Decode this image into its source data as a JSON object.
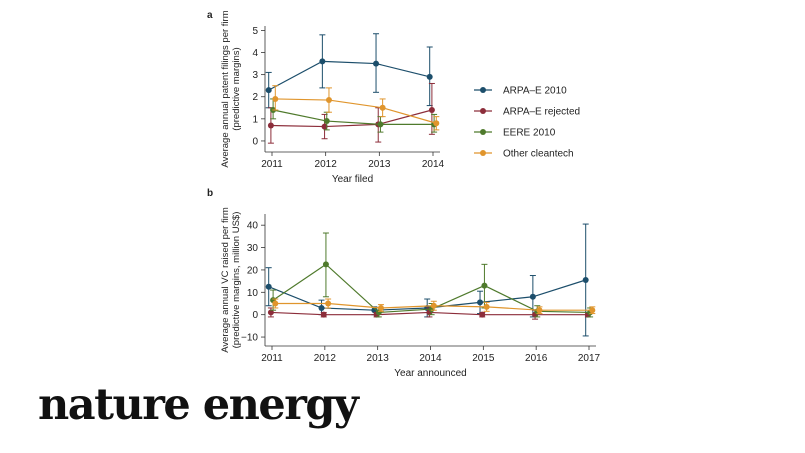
{
  "logo": "nature energy",
  "colors": {
    "ARPA-E 2010": "#1c4e6b",
    "ARPA-E rejected": "#8c2d3a",
    "EERE 2010": "#4f7a2c",
    "Other cleantech": "#e0952c"
  },
  "chart_data": [
    {
      "panel_label": "a",
      "type": "line",
      "title": "",
      "xlabel": "Year filed",
      "ylabel": "Average annual patent filings per firm (predictive margins)",
      "categories": [
        "2011",
        "2012",
        "2013",
        "2014"
      ],
      "ylim": [
        -0.5,
        5.2
      ],
      "yticks": [
        0,
        1,
        2,
        3,
        4,
        5
      ],
      "legend_position": "right",
      "series": [
        {
          "name": "ARPA–E 2010",
          "color_key": "ARPA-E 2010",
          "values": [
            2.3,
            3.6,
            3.5,
            2.9
          ],
          "ci_low": [
            1.5,
            2.4,
            2.2,
            1.6
          ],
          "ci_high": [
            3.1,
            4.8,
            4.85,
            4.25
          ]
        },
        {
          "name": "ARPA–E rejected",
          "color_key": "ARPA-E rejected",
          "values": [
            0.7,
            0.65,
            0.75,
            1.4
          ],
          "ci_low": [
            -0.1,
            0.1,
            -0.05,
            0.3
          ],
          "ci_high": [
            1.5,
            1.2,
            1.5,
            2.6
          ]
        },
        {
          "name": "EERE 2010",
          "color_key": "EERE 2010",
          "values": [
            1.4,
            0.9,
            0.75,
            0.75
          ],
          "ci_low": [
            1.0,
            0.5,
            0.4,
            0.4
          ],
          "ci_high": [
            1.9,
            1.3,
            1.1,
            1.2
          ]
        },
        {
          "name": "Other cleantech",
          "color_key": "Other cleantech",
          "values": [
            1.9,
            1.85,
            1.5,
            0.8
          ],
          "ci_low": [
            1.4,
            1.3,
            1.1,
            0.5
          ],
          "ci_high": [
            2.5,
            2.4,
            1.9,
            1.1
          ]
        }
      ]
    },
    {
      "panel_label": "b",
      "type": "line",
      "title": "",
      "xlabel": "Year announced",
      "ylabel": "Average annual VC raised per firm (predictive margins, million US$)",
      "categories": [
        "2011",
        "2012",
        "2013",
        "2014",
        "2015",
        "2016",
        "2017"
      ],
      "ylim": [
        -14,
        45
      ],
      "yticks": [
        -10,
        0,
        10,
        20,
        30,
        40
      ],
      "series": [
        {
          "name": "ARPA–E 2010",
          "color_key": "ARPA-E 2010",
          "values": [
            12.5,
            3.0,
            2.0,
            3.0,
            5.5,
            8.0,
            15.5
          ],
          "ci_low": [
            4.0,
            0.0,
            0.0,
            -1.0,
            0.5,
            -1.0,
            -9.5
          ],
          "ci_high": [
            21.0,
            6.5,
            3.5,
            7.0,
            10.5,
            17.5,
            40.5
          ]
        },
        {
          "name": "ARPA–E rejected",
          "color_key": "ARPA-E rejected",
          "values": [
            1.0,
            0.0,
            0.0,
            1.0,
            0.0,
            0.0,
            0.0
          ],
          "ci_low": [
            -1.0,
            -1.0,
            -1.0,
            -1.0,
            -1.0,
            -2.0,
            -1.0
          ],
          "ci_high": [
            3.0,
            1.0,
            1.0,
            3.0,
            1.0,
            2.0,
            1.0
          ]
        },
        {
          "name": "EERE 2010",
          "color_key": "EERE 2010",
          "values": [
            6.5,
            22.5,
            1.0,
            2.5,
            13.0,
            1.5,
            1.0
          ],
          "ci_low": [
            2.0,
            8.0,
            -1.0,
            0.0,
            3.0,
            -1.0,
            -1.0
          ],
          "ci_high": [
            11.0,
            36.5,
            3.0,
            5.0,
            22.5,
            4.0,
            3.0
          ]
        },
        {
          "name": "Other cleantech",
          "color_key": "Other cleantech",
          "values": [
            5.0,
            5.0,
            3.0,
            4.0,
            3.5,
            2.0,
            2.0
          ],
          "ci_low": [
            3.0,
            3.0,
            1.5,
            2.0,
            1.5,
            0.5,
            0.5
          ],
          "ci_high": [
            7.0,
            7.0,
            4.5,
            6.0,
            5.5,
            3.5,
            3.5
          ]
        }
      ]
    }
  ]
}
